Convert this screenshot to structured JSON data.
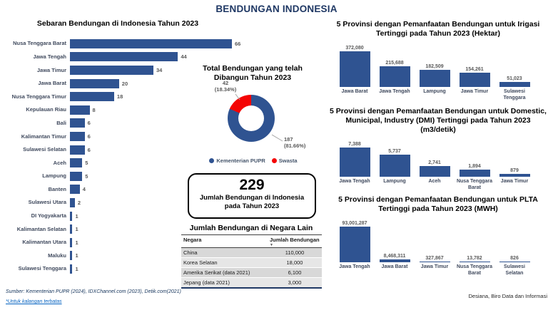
{
  "title": "BENDUNGAN INDONESIA",
  "colors": {
    "navy": "#1f3864",
    "bar_blue": "#2f5391",
    "red": "#f40404",
    "value_gray": "#595959"
  },
  "chart_data": [
    {
      "id": "sebaran",
      "type": "bar",
      "orientation": "horizontal",
      "title": "Sebaran Bendungan di Indonesia Tahun 2023",
      "categories": [
        "Nusa Tenggara Barat",
        "Jawa Tengah",
        "Jawa Timur",
        "Jawa Barat",
        "Nusa Tenggara Timur",
        "Kepulauan Riau",
        "Bali",
        "Kalimantan Timur",
        "Sulawesi Selatan",
        "Aceh",
        "Lampung",
        "Banten",
        "Sulawesi Utara",
        "DI Yogyakarta",
        "Kalimantan Selatan",
        "Kalimantan Utara",
        "Maluku",
        "Sulawesi Tenggara"
      ],
      "values": [
        66,
        44,
        34,
        20,
        18,
        8,
        6,
        6,
        6,
        5,
        5,
        4,
        2,
        1,
        1,
        1,
        1,
        1
      ],
      "xlim": [
        0,
        70
      ],
      "grid": false,
      "data_labels": true
    },
    {
      "id": "total-dibangun",
      "type": "pie",
      "title": "Total Bendungan yang telah Dibangun Tahun 2023",
      "donut": true,
      "legend_position": "bottom",
      "slices": [
        {
          "name": "Kementerian PUPR",
          "value": 187,
          "pct": 81.66,
          "value_label": "187",
          "pct_label": "(81.66%)",
          "color": "#2f5391"
        },
        {
          "name": "Swasta",
          "value": 42,
          "pct": 18.34,
          "value_label": "42",
          "pct_label": "(18.34%)",
          "color": "#f40404"
        }
      ]
    },
    {
      "id": "irigasi",
      "type": "bar",
      "title": "5 Provinsi dengan Pemanfaatan Bendungan untuk Irigasi Tertinggi pada Tahun 2023 (Hektar)",
      "categories": [
        "Jawa Barat",
        "Jawa Tengah",
        "Lampung",
        "Jawa Timur",
        "Sulawesi Tenggara"
      ],
      "values": [
        372080,
        215688,
        182509,
        154261,
        51023
      ],
      "value_labels": [
        "372,080",
        "215,688",
        "182,509",
        "154,261",
        "51,023"
      ],
      "grid": false,
      "data_labels": true
    },
    {
      "id": "dmi",
      "type": "bar",
      "title": "5 Provinsi dengan Pemanfaatan Bendungan untuk Domestic, Municipal, Industry (DMI) Tertinggi pada Tahun 2023 (m3/detik)",
      "categories": [
        "Jawa Tengah",
        "Lampung",
        "Aceh",
        "Nusa Tenggara Barat",
        "Jawa Timur"
      ],
      "values": [
        7388,
        5737,
        2741,
        1894,
        879
      ],
      "value_labels": [
        "7,388",
        "5,737",
        "2,741",
        "1,894",
        "879"
      ],
      "grid": false,
      "data_labels": true
    },
    {
      "id": "plta",
      "type": "bar",
      "title": "5 Provinsi dengan Pemanfaatan Bendungan untuk PLTA Tertinggi pada Tahun 2023 (MWH)",
      "categories": [
        "Jawa Tengah",
        "Jawa Barat",
        "Jawa Timur",
        "Nusa Tenggara Barat",
        "Sulawesi Selatan"
      ],
      "values": [
        93001287,
        8468311,
        327867,
        13782,
        826
      ],
      "value_labels": [
        "93,001,287",
        "8,468,311",
        "327,867",
        "13,782",
        "826"
      ],
      "grid": false,
      "data_labels": true
    },
    {
      "id": "negara-lain",
      "type": "table",
      "title": "Jumlah Bendungan di Negara Lain",
      "columns": [
        "Negara",
        "Jumlah Bendungan"
      ],
      "rows": [
        [
          "China",
          "110,000"
        ],
        [
          "Korea Selatan",
          "18,000"
        ],
        [
          "Amerika Serikat (data 2021)",
          "6,100"
        ],
        [
          "Jepang (data 2021)",
          "3,000"
        ]
      ]
    }
  ],
  "total_box": {
    "value": "229",
    "caption": "Jumlah Bendungan di Indonesia pada Tahun 2023"
  },
  "footer": {
    "source": "Sumber: Kementerian PUPR (2024),  IDXChannel.com (2023), Detik.com(2021)",
    "note": "*Untuk kalangan terbatas",
    "credit": "Desiana, Biro Data dan Informasi"
  }
}
